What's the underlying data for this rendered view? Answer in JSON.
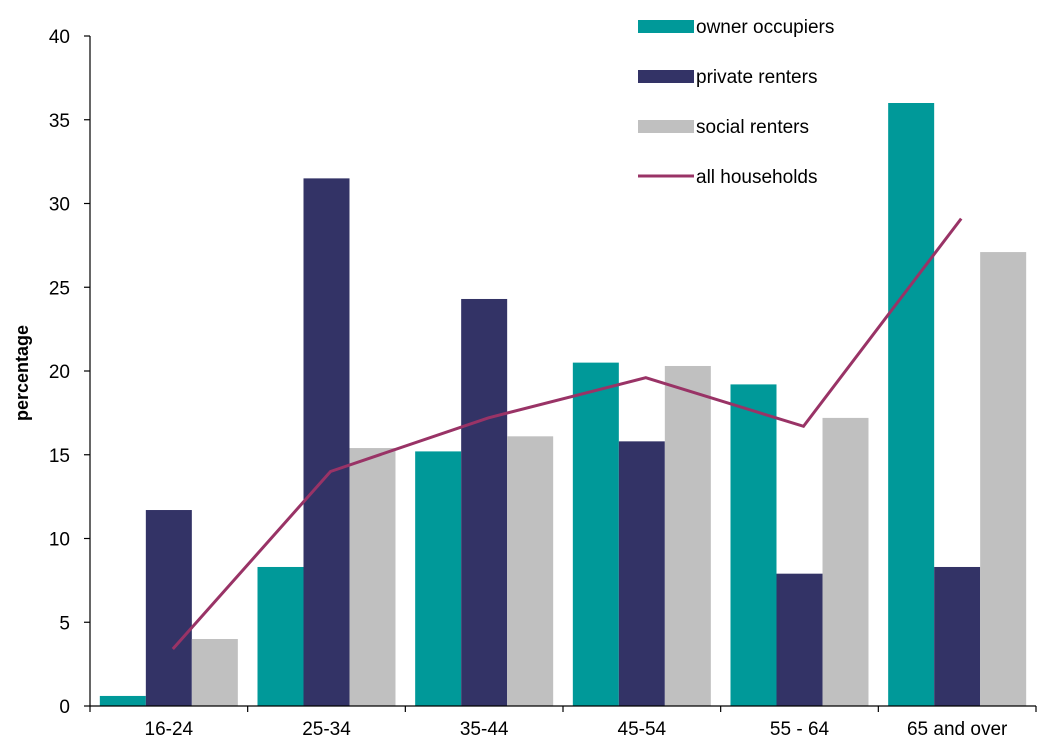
{
  "chart_data": {
    "type": "bar",
    "title": "",
    "xlabel": "",
    "ylabel": "percentage",
    "ylim": [
      0,
      40
    ],
    "yticks": [
      0,
      5,
      10,
      15,
      20,
      25,
      30,
      35,
      40
    ],
    "categories": [
      "16-24",
      "25-34",
      "35-44",
      "45-54",
      "55 - 64",
      "65 and over"
    ],
    "series": [
      {
        "name": "owner occupiers",
        "kind": "bar",
        "color": "#009999",
        "values": [
          0.6,
          8.3,
          15.2,
          20.5,
          19.2,
          36.0
        ]
      },
      {
        "name": "private renters",
        "kind": "bar",
        "color": "#333366",
        "values": [
          11.7,
          31.5,
          24.3,
          15.8,
          7.9,
          8.3
        ]
      },
      {
        "name": "social renters",
        "kind": "bar",
        "color": "#c0c0c0",
        "values": [
          4.0,
          15.4,
          16.1,
          20.3,
          17.2,
          27.1
        ]
      },
      {
        "name": "all households",
        "kind": "line",
        "color": "#993366",
        "values": [
          3.4,
          14.0,
          17.2,
          19.6,
          16.7,
          29.1
        ]
      }
    ],
    "legend": {
      "position": "top-right"
    },
    "grid": false
  }
}
